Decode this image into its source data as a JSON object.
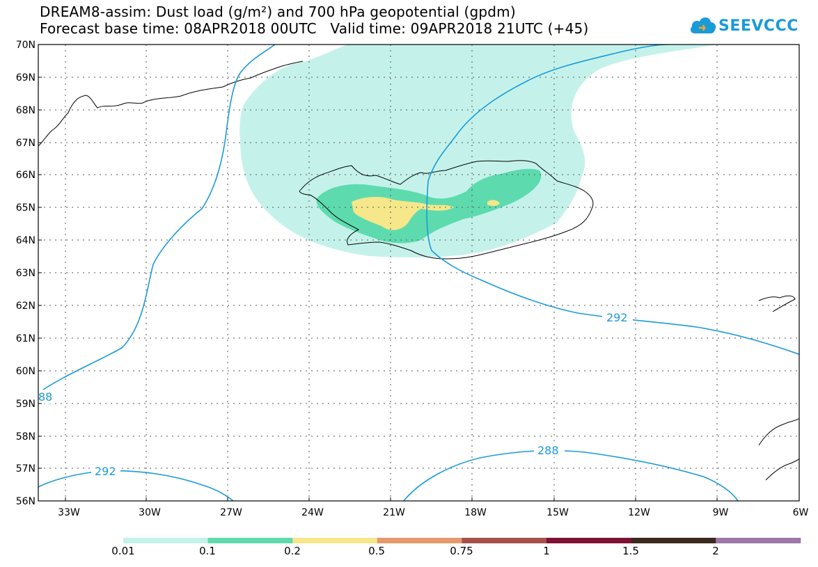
{
  "title": {
    "line1": "DREAM8-assim: Dust load (g/m²) and 700 hPa geopotential (gpdm)",
    "line2": "Forecast base time: 08APR2018 00UTC   Valid time: 09APR2018 21UTC (+45)"
  },
  "logo": {
    "text": "SEEVCCC",
    "icon": "cloud-icon"
  },
  "axes": {
    "lat_labels": [
      "70N",
      "69N",
      "68N",
      "67N",
      "66N",
      "65N",
      "64N",
      "63N",
      "62N",
      "61N",
      "60N",
      "59N",
      "58N",
      "57N",
      "56N"
    ],
    "lon_labels": [
      "33W",
      "30W",
      "27W",
      "24W",
      "21W",
      "18W",
      "15W",
      "12W",
      "9W",
      "6W"
    ]
  },
  "contour_labels": [
    "292",
    "88",
    "292",
    "288"
  ],
  "colorbar": {
    "labels": [
      "0.01",
      "0.1",
      "0.2",
      "0.5",
      "0.75",
      "1",
      "1.5",
      "2"
    ],
    "colors": [
      "#c4f2ea",
      "#5ddbae",
      "#f5e78a",
      "#e59a6e",
      "#a4514b",
      "#7e1234",
      "#3c2a1f",
      "#9c77a8"
    ]
  },
  "colors": {
    "contour": "#1a9ad9",
    "coast": "#000000",
    "grid": "#555555"
  },
  "chart_data": {
    "type": "map",
    "lat_range": [
      56,
      70
    ],
    "lon_range": [
      -34.5,
      -6
    ],
    "contour_levels_gpdm": [
      288,
      292
    ],
    "dust_levels": [
      0.01,
      0.1,
      0.2,
      0.5,
      0.75,
      1,
      1.5,
      2
    ]
  }
}
